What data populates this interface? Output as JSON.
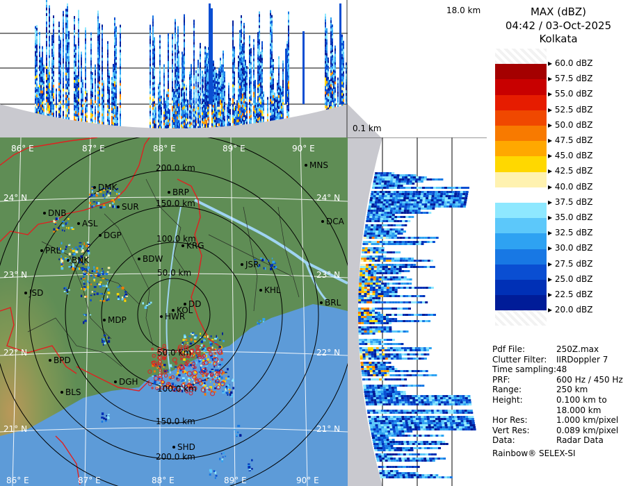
{
  "header": {
    "product": "MAX (dBZ)",
    "datetime": "04:42 / 03-Oct-2025",
    "station": "Kolkata"
  },
  "profile_labels": {
    "top_height": "18.0 km",
    "bottom_height": "0.1 km"
  },
  "scale": [
    {
      "label": "60.0 dBZ",
      "color": "#f4f4f4"
    },
    {
      "label": "57.5 dBZ",
      "color": "#a40000"
    },
    {
      "label": "55.0 dBZ",
      "color": "#c80000"
    },
    {
      "label": "52.5 dBZ",
      "color": "#e61c00"
    },
    {
      "label": "50.0 dBZ",
      "color": "#f04800"
    },
    {
      "label": "47.5 dBZ",
      "color": "#f87a00"
    },
    {
      "label": "45.0 dBZ",
      "color": "#ffa800"
    },
    {
      "label": "42.5 dBZ",
      "color": "#ffd800"
    },
    {
      "label": "40.0 dBZ",
      "color": "#fff2b0"
    },
    {
      "label": "37.5 dBZ",
      "color": "#ffffff"
    },
    {
      "label": "35.0 dBZ",
      "color": "#8ee8ff"
    },
    {
      "label": "32.5 dBZ",
      "color": "#5cc8fa"
    },
    {
      "label": "30.0 dBZ",
      "color": "#2ea2f2"
    },
    {
      "label": "27.5 dBZ",
      "color": "#1878e4"
    },
    {
      "label": "25.0 dBZ",
      "color": "#0a4ed2"
    },
    {
      "label": "22.5 dBZ",
      "color": "#0030b6"
    },
    {
      "label": "20.0 dBZ",
      "color": "#001c98"
    }
  ],
  "metadata": [
    {
      "key": "Pdf File:",
      "value": "250Z.max"
    },
    {
      "key": "Clutter Filter:",
      "value": "IIRDoppler 7"
    },
    {
      "key": "Time sampling:",
      "value": "48"
    },
    {
      "key": "PRF:",
      "value": "600 Hz / 450 Hz"
    },
    {
      "key": "Range:",
      "value": "250 km"
    },
    {
      "key": "Height:",
      "value": "0.100 km to"
    },
    {
      "key": "",
      "value": "18.000 km"
    },
    {
      "key": "Hor Res:",
      "value": "1.000 km/pixel"
    },
    {
      "key": "Vert Res:",
      "value": "0.089 km/pixel"
    },
    {
      "key": "Data:",
      "value": "Radar Data"
    }
  ],
  "footer": "Rainbow® SELEX-SI",
  "map": {
    "longitude_labels": [
      "86° E",
      "87° E",
      "88° E",
      "89° E",
      "90° E"
    ],
    "latitude_labels": [
      "24° N",
      "23° N",
      "22° N",
      "21° N"
    ],
    "range_labels": [
      "50.0 km",
      "100.0 km",
      "150.0 km",
      "200.0 km"
    ],
    "stations": [
      "MNS",
      "DMK",
      "BRP",
      "DNB",
      "SUR",
      "ASL",
      "DCA",
      "DGP",
      "KRG",
      "PRL",
      "BNK",
      "BDW",
      "JSR",
      "JSD",
      "KHL",
      "BRL",
      "DD",
      "KOL",
      "HWR",
      "MDP",
      "BPD",
      "DGH",
      "BLS",
      "SHD"
    ]
  }
}
